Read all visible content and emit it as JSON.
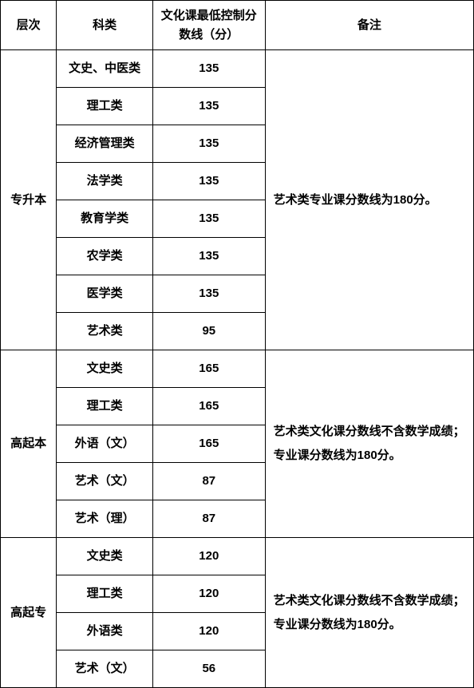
{
  "headers": {
    "level": "层次",
    "category": "科类",
    "score": "文化课最低控制分数线（分）",
    "note": "备注"
  },
  "groups": [
    {
      "level": "专升本",
      "rows": [
        {
          "category": "文史、中医类",
          "score": "135"
        },
        {
          "category": "理工类",
          "score": "135"
        },
        {
          "category": "经济管理类",
          "score": "135"
        },
        {
          "category": "法学类",
          "score": "135"
        },
        {
          "category": "教育学类",
          "score": "135"
        },
        {
          "category": "农学类",
          "score": "135"
        },
        {
          "category": "医学类",
          "score": "135"
        },
        {
          "category": "艺术类",
          "score": "95"
        }
      ],
      "note": "艺术类专业课分数线为180分。"
    },
    {
      "level": "高起本",
      "rows": [
        {
          "category": "文史类",
          "score": "165"
        },
        {
          "category": "理工类",
          "score": "165"
        },
        {
          "category": "外语（文）",
          "score": "165"
        },
        {
          "category": "艺术（文）",
          "score": "87"
        },
        {
          "category": "艺术（理）",
          "score": "87"
        }
      ],
      "note": "艺术类文化课分数线不含数学成绩；专业课分数线为180分。"
    },
    {
      "level": "高起专",
      "rows": [
        {
          "category": "文史类",
          "score": "120"
        },
        {
          "category": "理工类",
          "score": "120"
        },
        {
          "category": "外语类",
          "score": "120"
        },
        {
          "category": "艺术（文）",
          "score": "56"
        }
      ],
      "note": "艺术类文化课分数线不含数学成绩；专业课分数线为180分。"
    }
  ]
}
